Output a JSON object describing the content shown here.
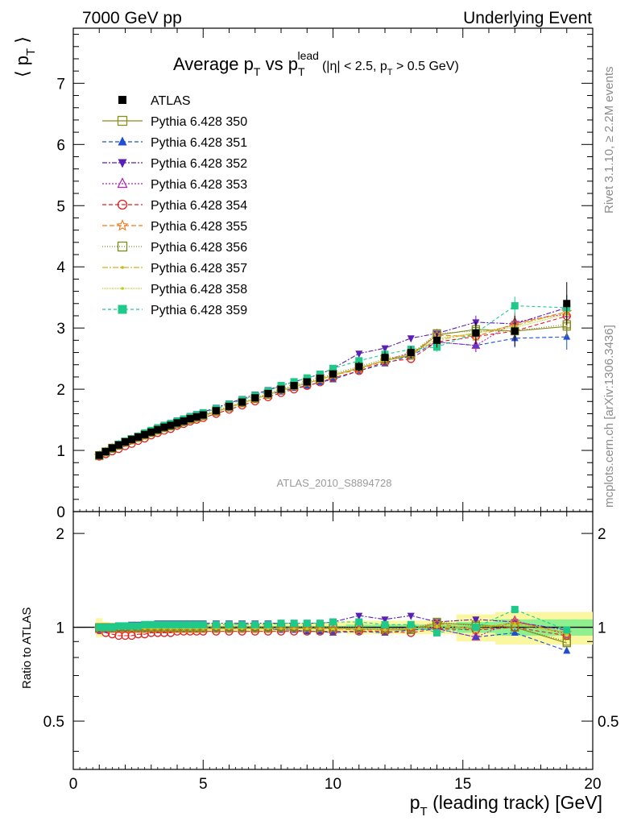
{
  "header": {
    "left": "7000 GeV pp",
    "right": "Underlying Event",
    "analysis_tag": "ATLAS_2010_S8894728",
    "side_top": "Rivet 3.1.10, ≥ 2.2M events",
    "side_bottom": "mcplots.cern.ch [arXiv:1306.3436]"
  },
  "title": {
    "a": "Average p",
    "a_sub": "T",
    "b": " vs p",
    "b_sub": "T",
    "b_sup": "lead",
    "cut1": "(|η| < 2.5, p",
    "cut_sub": "T",
    "cut2": " > 0.5 GeV)"
  },
  "axes": {
    "xlabel": "p",
    "xlabel_sub": "T",
    "xlabel_rest": " (leading track) [GeV]",
    "ylabel_main": "⟨ p",
    "ylabel_main_sub": "T",
    "ylabel_main_close": " ⟩",
    "ylabel_ratio": "Ratio to ATLAS",
    "x_ticks": [
      "0",
      "5",
      "10",
      "15",
      "20"
    ],
    "y_ticks_main": [
      "0",
      "1",
      "2",
      "3",
      "4",
      "5",
      "6",
      "7"
    ],
    "y_ticks_ratio": [
      "0.5",
      "1",
      "2"
    ]
  },
  "chart_data": {
    "type": "line",
    "xlim": [
      0,
      20
    ],
    "ylim_main": [
      0,
      7.9
    ],
    "ylim_ratio": [
      0.35,
      2.35
    ],
    "ratio_log_scale": true,
    "x": [
      1.0,
      1.25,
      1.5,
      1.75,
      2.0,
      2.25,
      2.5,
      2.75,
      3.0,
      3.25,
      3.5,
      3.75,
      4.0,
      4.25,
      4.5,
      4.75,
      5.0,
      5.5,
      6.0,
      6.5,
      7.0,
      7.5,
      8.0,
      8.5,
      9.0,
      9.5,
      10.0,
      11.0,
      12.0,
      13.0,
      14.0,
      15.5,
      17.0,
      19.0
    ],
    "data": {
      "name": "ATLAS",
      "color": "#000000",
      "values": [
        0.92,
        0.98,
        1.04,
        1.09,
        1.14,
        1.18,
        1.22,
        1.26,
        1.3,
        1.34,
        1.38,
        1.41,
        1.45,
        1.48,
        1.52,
        1.55,
        1.58,
        1.65,
        1.72,
        1.79,
        1.86,
        1.93,
        2.0,
        2.06,
        2.12,
        2.18,
        2.25,
        2.37,
        2.52,
        2.6,
        2.8,
        2.92,
        2.95,
        3.4
      ],
      "band_main": [
        0.03,
        0.02,
        0.02,
        0.02,
        0.02,
        0.02,
        0.02,
        0.02,
        0.02,
        0.02,
        0.02,
        0.02,
        0.02,
        0.02,
        0.02,
        0.02,
        0.03,
        0.03,
        0.03,
        0.03,
        0.04,
        0.04,
        0.04,
        0.05,
        0.05,
        0.06,
        0.06,
        0.08,
        0.1,
        0.1,
        0.12,
        0.18,
        0.25,
        0.35
      ],
      "ratio_band_yellow": [
        0.07,
        0.04,
        0.03,
        0.03,
        0.03,
        0.03,
        0.03,
        0.03,
        0.03,
        0.03,
        0.03,
        0.03,
        0.03,
        0.03,
        0.03,
        0.03,
        0.03,
        0.03,
        0.03,
        0.03,
        0.03,
        0.03,
        0.03,
        0.03,
        0.03,
        0.04,
        0.04,
        0.05,
        0.05,
        0.05,
        0.05,
        0.1,
        0.12,
        0.12
      ],
      "ratio_band_green": [
        0.02,
        0.01,
        0.01,
        0.01,
        0.01,
        0.01,
        0.01,
        0.01,
        0.01,
        0.01,
        0.01,
        0.01,
        0.01,
        0.01,
        0.01,
        0.01,
        0.01,
        0.01,
        0.01,
        0.01,
        0.01,
        0.01,
        0.01,
        0.01,
        0.01,
        0.01,
        0.01,
        0.02,
        0.02,
        0.02,
        0.02,
        0.04,
        0.06,
        0.06
      ]
    },
    "series": [
      {
        "name": "Pythia 6.428 350",
        "color": "#8b8b1e",
        "marker": "open-square",
        "dash": "",
        "ratio": [
          0.99,
          0.99,
          0.99,
          0.99,
          0.99,
          0.99,
          0.99,
          0.99,
          0.99,
          0.99,
          0.99,
          0.99,
          0.99,
          0.99,
          0.99,
          0.99,
          0.99,
          0.99,
          0.99,
          0.99,
          0.99,
          0.99,
          0.99,
          0.99,
          0.99,
          0.99,
          0.99,
          0.99,
          0.98,
          0.98,
          1.03,
          1.02,
          1.0,
          0.89
        ]
      },
      {
        "name": "Pythia 6.428 351",
        "color": "#1f4ed4",
        "marker": "filled-triangle-up",
        "dash": "5,3",
        "ratio": [
          0.98,
          0.98,
          0.99,
          0.99,
          0.99,
          1.0,
          1.0,
          1.0,
          1.0,
          1.0,
          1.0,
          1.0,
          1.0,
          1.0,
          1.0,
          1.0,
          1.0,
          0.99,
          0.99,
          0.99,
          0.99,
          0.99,
          0.98,
          0.98,
          0.97,
          0.97,
          0.96,
          0.97,
          0.96,
          0.98,
          0.99,
          0.93,
          0.96,
          0.84
        ]
      },
      {
        "name": "Pythia 6.428 352",
        "color": "#5a1fb4",
        "marker": "filled-triangle-down",
        "dash": "6,2,2,2",
        "ratio": [
          0.99,
          1.0,
          1.0,
          1.01,
          1.01,
          1.02,
          1.02,
          1.02,
          1.02,
          1.03,
          1.03,
          1.03,
          1.03,
          1.03,
          1.03,
          1.03,
          1.03,
          1.03,
          1.03,
          1.03,
          1.03,
          1.03,
          1.03,
          1.03,
          1.03,
          1.03,
          1.04,
          1.09,
          1.06,
          1.09,
          1.04,
          1.06,
          1.04,
          0.98
        ]
      },
      {
        "name": "Pythia 6.428 353",
        "color": "#b31fb3",
        "marker": "open-triangle-up",
        "dash": "2,2",
        "ratio": [
          0.99,
          0.99,
          0.99,
          0.99,
          0.99,
          0.99,
          0.99,
          0.99,
          0.99,
          0.99,
          0.99,
          0.99,
          0.99,
          0.99,
          0.99,
          0.99,
          0.99,
          0.99,
          0.99,
          0.99,
          0.99,
          0.99,
          0.99,
          0.99,
          0.99,
          0.99,
          0.99,
          0.99,
          0.98,
          1.0,
          0.99,
          0.93,
          1.05,
          0.95
        ]
      },
      {
        "name": "Pythia 6.428 354",
        "color": "#e0201f",
        "marker": "open-circle",
        "dash": "5,3",
        "ratio": [
          0.98,
          0.96,
          0.95,
          0.94,
          0.94,
          0.94,
          0.95,
          0.95,
          0.96,
          0.96,
          0.96,
          0.96,
          0.97,
          0.97,
          0.97,
          0.97,
          0.97,
          0.97,
          0.97,
          0.97,
          0.97,
          0.97,
          0.97,
          0.97,
          0.97,
          0.97,
          0.97,
          0.97,
          0.97,
          0.96,
          0.99,
          0.98,
          1.0,
          0.94
        ]
      },
      {
        "name": "Pythia 6.428 355",
        "color": "#f07a1f",
        "marker": "open-star",
        "dash": "6,3",
        "ratio": [
          0.99,
          0.99,
          0.99,
          0.99,
          0.99,
          0.99,
          0.99,
          0.99,
          0.99,
          0.99,
          0.99,
          0.99,
          0.99,
          0.99,
          0.99,
          0.99,
          0.99,
          0.99,
          0.99,
          0.99,
          0.99,
          0.99,
          0.99,
          0.99,
          0.99,
          0.99,
          0.99,
          0.98,
          0.98,
          0.99,
          1.03,
          0.98,
          1.04,
          0.96
        ]
      },
      {
        "name": "Pythia 6.428 356",
        "color": "#7a8a1a",
        "marker": "open-square",
        "dash": "1,2",
        "ratio": [
          1.0,
          1.0,
          1.0,
          1.0,
          1.0,
          1.0,
          1.0,
          1.0,
          1.0,
          1.0,
          1.0,
          1.0,
          1.0,
          1.0,
          1.0,
          1.0,
          1.0,
          1.0,
          1.0,
          1.0,
          1.0,
          1.0,
          1.0,
          1.0,
          1.0,
          1.0,
          1.0,
          1.0,
          0.99,
          0.99,
          1.04,
          1.01,
          1.0,
          0.9
        ]
      },
      {
        "name": "Pythia 6.428 357",
        "color": "#d2b21f",
        "marker": "small-dot",
        "dash": "7,2,2,2",
        "ratio": [
          0.99,
          0.99,
          0.99,
          0.99,
          0.99,
          0.99,
          0.99,
          0.99,
          0.99,
          0.99,
          0.99,
          0.99,
          0.99,
          0.99,
          0.99,
          0.99,
          0.99,
          0.99,
          0.99,
          0.99,
          0.99,
          0.99,
          0.99,
          0.99,
          0.99,
          0.99,
          0.99,
          0.99,
          0.98,
          0.99,
          1.0,
          1.0,
          1.03,
          0.96
        ]
      },
      {
        "name": "Pythia 6.428 358",
        "color": "#b8d21f",
        "marker": "small-dot",
        "dash": "1,1",
        "ratio": [
          0.99,
          0.99,
          0.99,
          0.99,
          0.99,
          0.99,
          0.99,
          0.99,
          0.99,
          0.99,
          0.99,
          0.99,
          0.99,
          0.99,
          0.99,
          0.99,
          0.99,
          0.99,
          0.99,
          0.99,
          0.99,
          0.99,
          0.99,
          0.99,
          0.99,
          0.99,
          0.99,
          0.99,
          0.98,
          0.99,
          1.01,
          1.0,
          1.02,
          0.95
        ]
      },
      {
        "name": "Pythia 6.428 359",
        "color": "#1fc98a",
        "marker": "filled-square",
        "dash": "4,3",
        "ratio": [
          1.0,
          1.0,
          1.0,
          1.01,
          1.01,
          1.01,
          1.01,
          1.02,
          1.02,
          1.02,
          1.02,
          1.02,
          1.02,
          1.02,
          1.02,
          1.02,
          1.02,
          1.02,
          1.02,
          1.02,
          1.02,
          1.02,
          1.03,
          1.03,
          1.03,
          1.03,
          1.04,
          1.04,
          1.02,
          1.02,
          0.96,
          1.0,
          1.14,
          0.98
        ]
      }
    ]
  }
}
